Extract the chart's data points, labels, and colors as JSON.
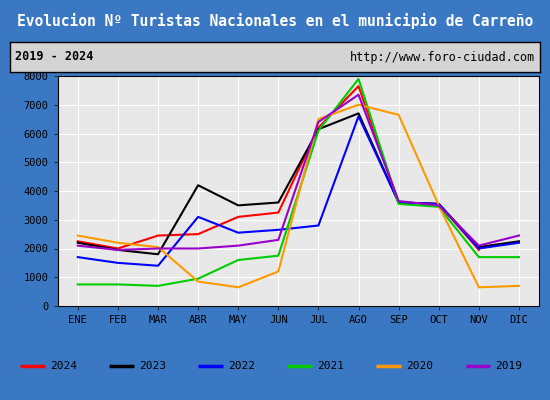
{
  "title": "Evolucion Nº Turistas Nacionales en el municipio de Carreño",
  "subtitle_left": "2019 - 2024",
  "subtitle_right": "http://www.foro-ciudad.com",
  "months": [
    "ENE",
    "FEB",
    "MAR",
    "ABR",
    "MAY",
    "JUN",
    "JUL",
    "AGO",
    "SEP",
    "OCT",
    "NOV",
    "DIC"
  ],
  "ylim": [
    0,
    8000
  ],
  "yticks": [
    0,
    1000,
    2000,
    3000,
    4000,
    5000,
    6000,
    7000,
    8000
  ],
  "series": {
    "2024": {
      "color": "#ff0000",
      "data": [
        2250,
        2000,
        2450,
        2500,
        3100,
        3250,
        6200,
        7650,
        3600,
        3550,
        1950,
        null
      ]
    },
    "2023": {
      "color": "#000000",
      "data": [
        2200,
        1950,
        1800,
        4200,
        3500,
        3600,
        6150,
        6700,
        3600,
        3550,
        2050,
        2250
      ]
    },
    "2022": {
      "color": "#0000ff",
      "data": [
        1700,
        1500,
        1400,
        3100,
        2550,
        2650,
        2800,
        6600,
        3600,
        3550,
        2000,
        2200
      ]
    },
    "2021": {
      "color": "#00cc00",
      "data": [
        750,
        750,
        700,
        950,
        1600,
        1750,
        6100,
        7900,
        3550,
        3450,
        1700,
        1700
      ]
    },
    "2020": {
      "color": "#ff9900",
      "data": [
        2450,
        2200,
        2050,
        850,
        650,
        1200,
        6500,
        7000,
        6650,
        3500,
        650,
        700
      ]
    },
    "2019": {
      "color": "#9900cc",
      "data": [
        2100,
        1950,
        2000,
        2000,
        2100,
        2300,
        6400,
        7350,
        3650,
        3500,
        2100,
        2450
      ]
    }
  },
  "legend_order": [
    "2024",
    "2023",
    "2022",
    "2021",
    "2020",
    "2019"
  ],
  "title_bg": "#3b78c3",
  "title_color": "#ffffff",
  "subtitle_bg": "#d4d4d4",
  "plot_bg": "#e8e8e8",
  "grid_color": "#ffffff",
  "outer_bg": "#3b78c3"
}
